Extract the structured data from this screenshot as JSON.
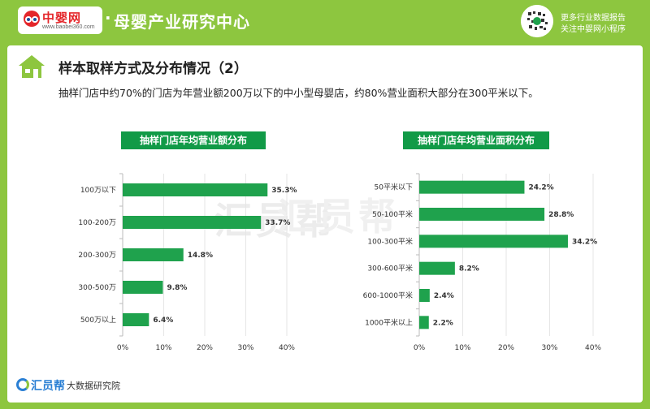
{
  "header": {
    "logo_name": "中婴网",
    "logo_url": "www.baobei360.com",
    "title": "母婴产业研究中心",
    "qr_line1": "更多行业数据报告",
    "qr_line2": "关注中婴网小程序"
  },
  "section": {
    "title": "样本取样方式及分布情况（2）",
    "subtitle": "抽样门店中约70%的门店为年营业额200万以下的中小型母婴店，约80%营业面积大部分在300平米以下。"
  },
  "watermark": "汇员帮",
  "footer": {
    "brand": "汇员帮",
    "text": "大数据研究院"
  },
  "colors": {
    "bar": "#1fa24d",
    "header_bg": "#8dc63f",
    "title_bg": "#119a47"
  },
  "chart_data": [
    {
      "type": "bar",
      "orientation": "horizontal",
      "title": "抽样门店年均营业额分布",
      "categories": [
        "100万以下",
        "100-200万",
        "200-300万",
        "300-500万",
        "500万以上"
      ],
      "values": [
        35.3,
        33.7,
        14.8,
        9.8,
        6.4
      ],
      "value_labels": [
        "35.3%",
        "33.7%",
        "14.8%",
        "9.8%",
        "6.4%"
      ],
      "xlim": [
        0,
        40
      ],
      "x_ticks": [
        "0%",
        "10%",
        "20%",
        "30%",
        "40%"
      ],
      "grid": true
    },
    {
      "type": "bar",
      "orientation": "horizontal",
      "title": "抽样门店年均营业面积分布",
      "categories": [
        "50平米以下",
        "50-100平米",
        "100-300平米",
        "300-600平米",
        "600-1000平米",
        "1000平米以上"
      ],
      "values": [
        24.2,
        28.8,
        34.2,
        8.2,
        2.4,
        2.2
      ],
      "value_labels": [
        "24.2%",
        "28.8%",
        "34.2%",
        "8.2%",
        "2.4%",
        "2.2%"
      ],
      "xlim": [
        0,
        40
      ],
      "x_ticks": [
        "0%",
        "10%",
        "20%",
        "30%",
        "40%"
      ],
      "grid": true
    }
  ]
}
